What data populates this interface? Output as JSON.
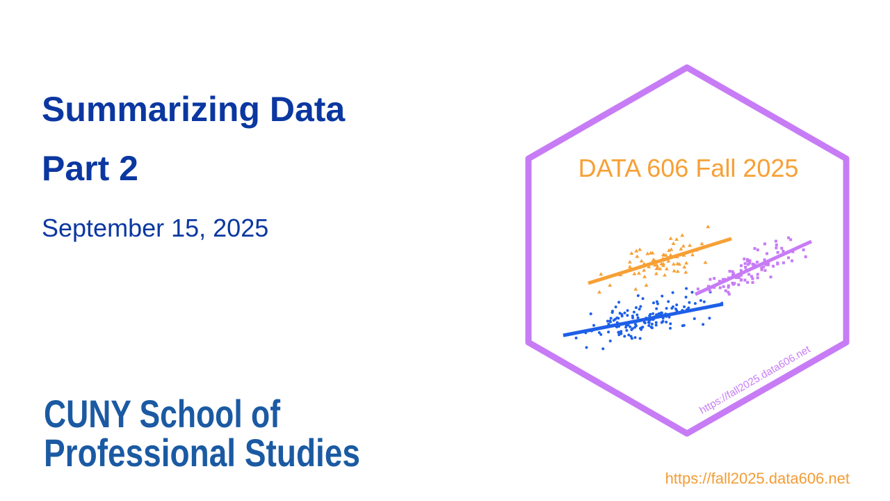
{
  "title": "Summarizing Data",
  "subtitle": "Part 2",
  "date": "September 15, 2025",
  "logo": {
    "line1": "CUNY School of",
    "line2": "Professional Studies"
  },
  "hex": {
    "title": "DATA 606 Fall 2025",
    "url": "https://fall2025.data606.net"
  },
  "footer": {
    "url": "https://fall2025.data606.net"
  }
}
